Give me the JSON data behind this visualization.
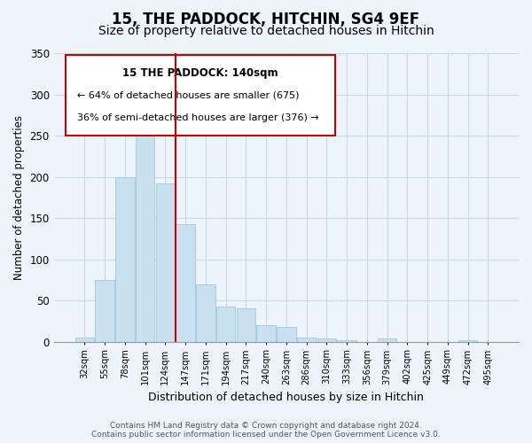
{
  "title": "15, THE PADDOCK, HITCHIN, SG4 9EF",
  "subtitle": "Size of property relative to detached houses in Hitchin",
  "xlabel": "Distribution of detached houses by size in Hitchin",
  "ylabel": "Number of detached properties",
  "bar_labels": [
    "32sqm",
    "55sqm",
    "78sqm",
    "101sqm",
    "124sqm",
    "147sqm",
    "171sqm",
    "194sqm",
    "217sqm",
    "240sqm",
    "263sqm",
    "286sqm",
    "310sqm",
    "333sqm",
    "356sqm",
    "379sqm",
    "402sqm",
    "425sqm",
    "449sqm",
    "472sqm",
    "495sqm"
  ],
  "bar_values": [
    5,
    75,
    200,
    262,
    192,
    143,
    70,
    43,
    40,
    20,
    18,
    5,
    4,
    2,
    0,
    4,
    0,
    0,
    0,
    2,
    0
  ],
  "bar_color": "#c9e0f0",
  "bar_edge_color": "#aacce0",
  "vline_index": 5,
  "vline_color": "#cc0000",
  "ylim": [
    0,
    350
  ],
  "yticks": [
    0,
    50,
    100,
    150,
    200,
    250,
    300,
    350
  ],
  "annotation_title": "15 THE PADDOCK: 140sqm",
  "annotation_line1": "← 64% of detached houses are smaller (675)",
  "annotation_line2": "36% of semi-detached houses are larger (376) →",
  "footer1": "Contains HM Land Registry data © Crown copyright and database right 2024.",
  "footer2": "Contains public sector information licensed under the Open Government Licence v3.0.",
  "bg_color": "#eef4fb",
  "plot_bg_color": "#eef4fb",
  "grid_color": "#c8d8e8",
  "title_fontsize": 12,
  "subtitle_fontsize": 10
}
